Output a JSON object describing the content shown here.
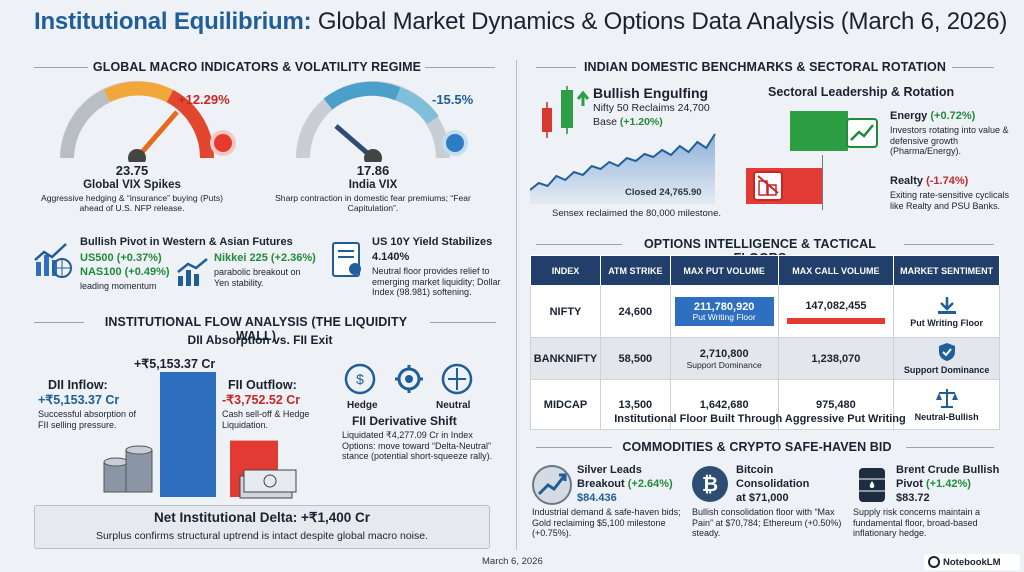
{
  "title": {
    "bold": "Institutional Equilibrium:",
    "rest": "Global Market Dynamics & Options Data Analysis (March 6, 2026)"
  },
  "macro": {
    "heading": "GLOBAL MACRO INDICATORS & VOLATILITY REGIME",
    "gauge1": {
      "change": "+12.29%",
      "value": "23.75",
      "label": "Global VIX Spikes",
      "desc": "Aggressive hedging & “insurance” buying (Puts) ahead of U.S. NFP release."
    },
    "gauge2": {
      "change": "-15.5%",
      "value": "17.86",
      "label": "India VIX",
      "desc": "Sharp contraction in domestic fear premiums; “Fear Capitulation”."
    },
    "futures": {
      "title": "Bullish Pivot in Western & Asian Futures",
      "us500": "US500 (+0.37%)",
      "nas100": "NAS100 (+0.49%)",
      "lead": "leading momentum",
      "nikkei": "Nikkei 225 (+2.36%)",
      "nikkei_desc": "parabolic breakout on Yen stability."
    },
    "yield": {
      "title": "US 10Y Yield Stabilizes",
      "value": "4.140%",
      "desc": "Neutral floor provides relief to emerging market liquidity; Dollar Index (98.981) softening."
    }
  },
  "flow": {
    "heading": "INSTITUTIONAL FLOW ANALYSIS (THE LIQUIDITY WALL)",
    "sub": "DII Absorption vs. FII Exit",
    "top_value": "+₹5,153.37 Cr",
    "dii_label": "DII Inflow:",
    "dii_value": "+₹5,153.37 Cr",
    "dii_desc": "Successful absorption of FII selling pressure.",
    "fii_label": "FII Outflow:",
    "fii_value": "-₹3,752.52 Cr",
    "fii_desc": "Cash sell-off & Hedge Liquidation.",
    "bar_values": {
      "dii": 5153.37,
      "fii": 3752.52
    },
    "hedge": "Hedge",
    "neutral": "Neutral",
    "deriv_title": "FII Derivative Shift",
    "deriv_desc": "Liquidated ₹4,277.09 Cr in Index Options: move toward “Delta-Neutral” stance (potential short-squeeze rally).",
    "net_title": "Net Institutional Delta: +₹1,400 Cr",
    "net_desc": "Surplus confirms structural uptrend is intact despite global macro noise."
  },
  "india": {
    "heading": "INDIAN DOMESTIC BENCHMARKS & SECTORAL ROTATION",
    "engulf_title": "Bullish Engulfing",
    "engulf_desc": "Nifty 50 Reclaims 24,700 Base",
    "engulf_pct": "(+1.20%)",
    "closed": "Closed 24,765.90",
    "sensex": "Sensex reclaimed the 80,000 milestone.",
    "sect_title": "Sectoral Leadership & Rotation",
    "energy": "Energy",
    "energy_pct": "(+0.72%)",
    "energy_desc": "Investors rotating into value & defensive growth (Pharma/Energy).",
    "realty": "Realty",
    "realty_pct": "(-1.74%)",
    "realty_desc": "Exiting rate-sensitive cyclicals like Realty and PSU Banks."
  },
  "options": {
    "heading": "OPTIONS INTELLIGENCE & TACTICAL FLOORS",
    "headers": [
      "INDEX",
      "ATM STRIKE",
      "MAX PUT VOLUME",
      "MAX CALL VOLUME",
      "MARKET SENTIMENT"
    ],
    "rows": [
      {
        "index": "NIFTY",
        "strike": "24,600",
        "put": "211,780,920",
        "put_note": "Put Writing Floor",
        "call": "147,082,455",
        "sentiment": "Put Writing Floor"
      },
      {
        "index": "BANKNIFTY",
        "strike": "58,500",
        "put": "2,710,800",
        "put_note": "Support Dominance",
        "call": "1,238,070",
        "sentiment": "Support Dominance"
      },
      {
        "index": "MIDCAP",
        "strike": "13,500",
        "put": "1,642,680",
        "put_note": "",
        "call": "975,480",
        "sentiment": "Neutral-Bullish"
      }
    ],
    "footer": "Institutional Floor Built Through Aggressive Put Writing"
  },
  "commod": {
    "heading": "COMMODITIES & CRYPTO SAFE-HAVEN BID",
    "silver_t1": "Silver Leads",
    "silver_t2": "Breakout",
    "silver_pct": "(+2.64%)",
    "silver_price": "$84.436",
    "silver_desc": "Industrial demand & safe-haven bids; Gold reclaiming $5,100 milestone (+0.75%).",
    "btc_t1": "Bitcoin",
    "btc_t2": "Consolidation",
    "btc_t3": "at $71,000",
    "btc_desc": "Bullish consolidation floor with “Max Pain” at $70,784; Ethereum (+0.50%) steady.",
    "brent_t1": "Brent Crude Bullish",
    "brent_t2": "Pivot",
    "brent_pct": "(+1.42%)",
    "brent_price": "$83.72",
    "brent_desc": "Supply risk concerns maintain a fundamental floor, broad-based inflationary hedge."
  },
  "footer": {
    "date": "March 6, 2026",
    "brand": "NotebookLM"
  }
}
